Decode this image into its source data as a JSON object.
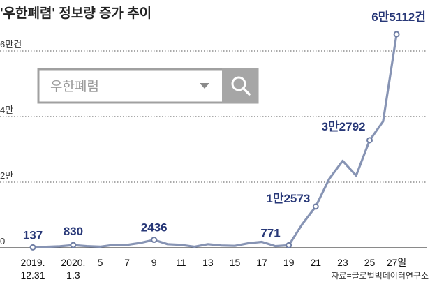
{
  "colors": {
    "line": "#8794b4",
    "label": "#283878",
    "search_button": "#a6a6a6"
  },
  "search": {
    "text": "우한폐렴",
    "dropdown_icon": "triangle-down-icon",
    "icon": "search-icon"
  },
  "chart_data": {
    "type": "line",
    "title": "'우한폐렴' 정보량 증가 추이",
    "source": "자료=글로벌빅데이터연구소",
    "y_ticks": [
      "6만건",
      "4만",
      "2만",
      "0"
    ],
    "ylim": [
      0,
      70000
    ],
    "grid": true,
    "x_tick_labels": [
      {
        "x": 0,
        "label": [
          "2019.",
          "12.31"
        ]
      },
      {
        "x": 3,
        "label": [
          "2020.",
          "1.3"
        ]
      },
      {
        "x": 5,
        "label": [
          "5"
        ]
      },
      {
        "x": 7,
        "label": [
          "7"
        ]
      },
      {
        "x": 9,
        "label": [
          "9"
        ]
      },
      {
        "x": 11,
        "label": [
          "11"
        ]
      },
      {
        "x": 13,
        "label": [
          "13"
        ]
      },
      {
        "x": 15,
        "label": [
          "15"
        ]
      },
      {
        "x": 17,
        "label": [
          "17"
        ]
      },
      {
        "x": 19,
        "label": [
          "19"
        ]
      },
      {
        "x": 21,
        "label": [
          "21"
        ]
      },
      {
        "x": 23,
        "label": [
          "23"
        ]
      },
      {
        "x": 25,
        "label": [
          "25"
        ]
      },
      {
        "x": 27,
        "label": [
          "27일"
        ]
      }
    ],
    "points": [
      {
        "x": 0,
        "y": 137
      },
      {
        "x": 1,
        "y": 300
      },
      {
        "x": 2,
        "y": 450
      },
      {
        "x": 3,
        "y": 830
      },
      {
        "x": 4,
        "y": 500
      },
      {
        "x": 5,
        "y": 350
      },
      {
        "x": 6,
        "y": 900
      },
      {
        "x": 7,
        "y": 900
      },
      {
        "x": 8,
        "y": 1500
      },
      {
        "x": 9,
        "y": 2436
      },
      {
        "x": 10,
        "y": 1100
      },
      {
        "x": 11,
        "y": 900
      },
      {
        "x": 12,
        "y": 350
      },
      {
        "x": 13,
        "y": 1100
      },
      {
        "x": 14,
        "y": 700
      },
      {
        "x": 15,
        "y": 600
      },
      {
        "x": 16,
        "y": 1400
      },
      {
        "x": 17,
        "y": 1800
      },
      {
        "x": 18,
        "y": 500
      },
      {
        "x": 19,
        "y": 771
      },
      {
        "x": 20,
        "y": 7200
      },
      {
        "x": 21,
        "y": 12573
      },
      {
        "x": 22,
        "y": 21000
      },
      {
        "x": 23,
        "y": 26500
      },
      {
        "x": 24,
        "y": 22000
      },
      {
        "x": 25,
        "y": 32792
      },
      {
        "x": 26,
        "y": 38500
      },
      {
        "x": 27,
        "y": 65112
      }
    ],
    "labeled_points": [
      {
        "x": 0,
        "y": 137,
        "text": "137"
      },
      {
        "x": 3,
        "y": 830,
        "text": "830"
      },
      {
        "x": 9,
        "y": 2436,
        "text": "2436"
      },
      {
        "x": 19,
        "y": 771,
        "text": "771"
      },
      {
        "x": 21,
        "y": 12573,
        "text": "1만2573"
      },
      {
        "x": 25,
        "y": 32792,
        "text": "3만2792"
      },
      {
        "x": 27,
        "y": 65112,
        "text": "6만5112건"
      }
    ]
  }
}
